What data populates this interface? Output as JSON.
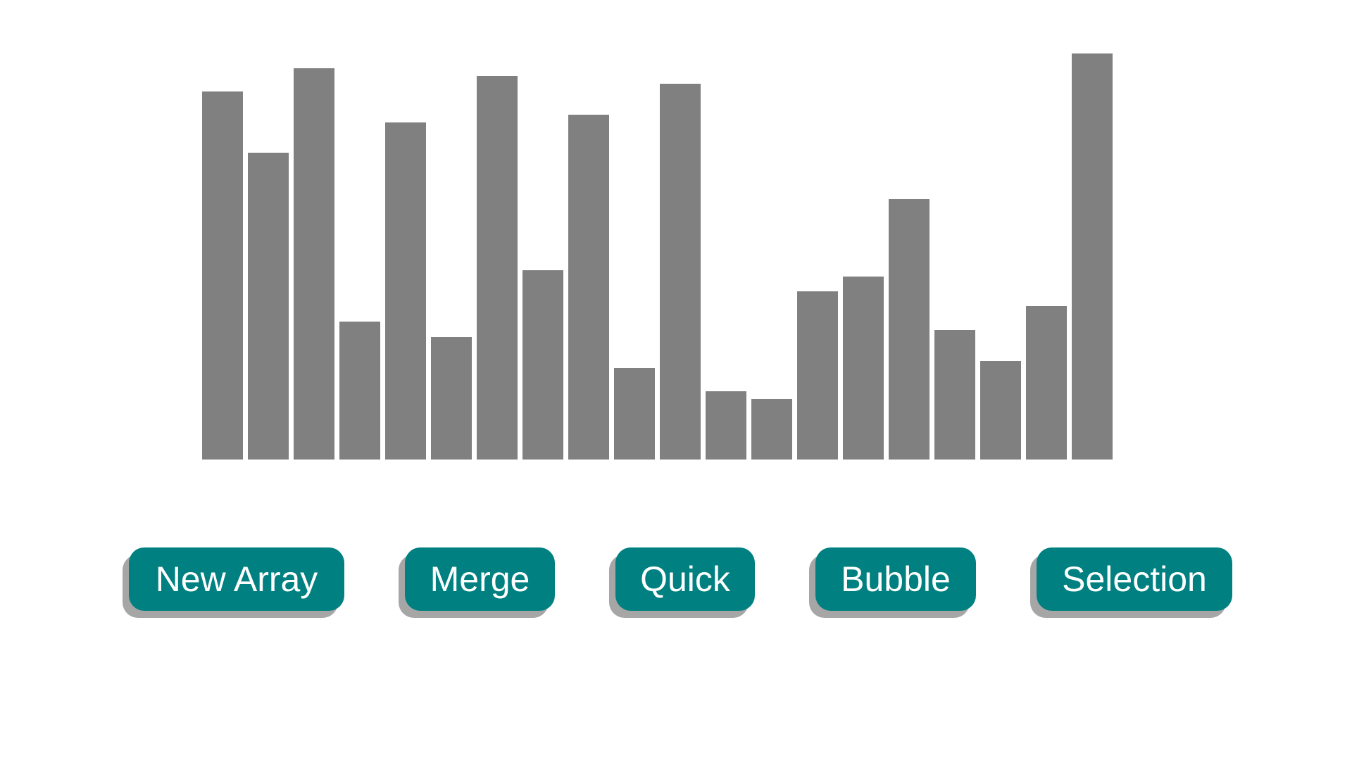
{
  "visualizer": {
    "bar_color": "#808080",
    "background_color": "#ffffff",
    "array_values": [
      523,
      436,
      556,
      196,
      479,
      174,
      545,
      269,
      490,
      130,
      534,
      97,
      86,
      239,
      260,
      370,
      184,
      140,
      218,
      577
    ],
    "max_value": 577
  },
  "controls": {
    "button_color": "#008080",
    "button_text_color": "#ffffff",
    "button_shadow_color": "#a6a6a6",
    "buttons": [
      {
        "id": "new-array",
        "label": "New Array"
      },
      {
        "id": "merge",
        "label": "Merge"
      },
      {
        "id": "quick",
        "label": "Quick"
      },
      {
        "id": "bubble",
        "label": "Bubble"
      },
      {
        "id": "selection",
        "label": "Selection"
      }
    ]
  }
}
